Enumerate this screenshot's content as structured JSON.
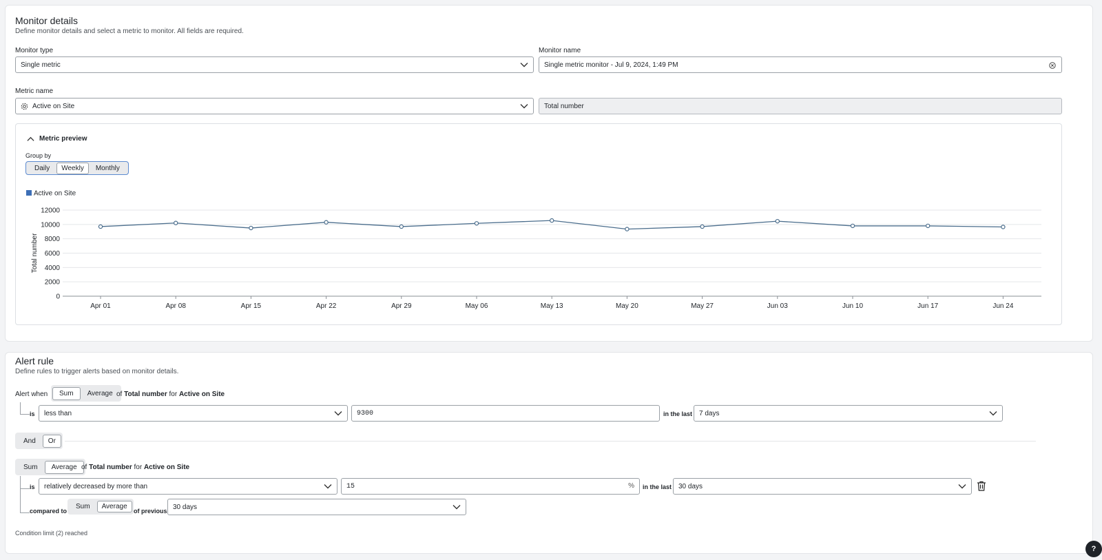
{
  "monitor_details": {
    "title": "Monitor details",
    "subtitle": "Define monitor details and select a metric to monitor. All fields are required.",
    "monitor_type_label": "Monitor type",
    "monitor_type_value": "Single metric",
    "monitor_name_label": "Monitor name",
    "monitor_name_value": "Single metric monitor - Jul 9, 2024, 1:49 PM",
    "metric_name_label": "Metric name",
    "metric_name_value": "Active on Site",
    "metric_unit_value": "Total number",
    "preview": {
      "title": "Metric preview",
      "group_by_label": "Group by",
      "group_by_options": [
        "Daily",
        "Weekly",
        "Monthly"
      ],
      "group_by_selected": "Weekly"
    }
  },
  "chart_data": {
    "type": "line",
    "title": "",
    "xlabel": "",
    "ylabel": "Total number",
    "legend": "top-left",
    "grid": true,
    "series_color": "#4a6d8c",
    "legend_color": "#3d6fb6",
    "ylim": [
      0,
      12000
    ],
    "yticks": [
      0,
      2000,
      4000,
      6000,
      8000,
      10000,
      12000
    ],
    "categories": [
      "Apr 01",
      "Apr 08",
      "Apr 15",
      "Apr 22",
      "Apr 29",
      "May 06",
      "May 13",
      "May 20",
      "May 27",
      "Jun 03",
      "Jun 10",
      "Jun 17",
      "Jun 24"
    ],
    "series": [
      {
        "name": "Active on Site",
        "values": [
          9700,
          10200,
          9500,
          10300,
          9700,
          10150,
          10550,
          9350,
          9700,
          10450,
          9800,
          9800,
          9650
        ]
      }
    ]
  },
  "alert_rule": {
    "title": "Alert rule",
    "subtitle": "Define rules to trigger alerts based on monitor details.",
    "alert_when_label": "Alert when",
    "agg_options": [
      "Sum",
      "Average"
    ],
    "cond1": {
      "agg_selected": "Sum",
      "of_label": "of",
      "metric_unit": "Total number",
      "for_label": "for",
      "metric": "Active on Site",
      "is_label": "is",
      "operator": "less than",
      "value": "9300",
      "in_the_last_label": "in the last",
      "window": "7 days"
    },
    "logic_options": [
      "And",
      "Or"
    ],
    "logic_selected": "Or",
    "cond2": {
      "agg_selected": "Average",
      "of_label": "of",
      "metric_unit": "Total number",
      "for_label": "for",
      "metric": "Active on Site",
      "is_label": "is",
      "operator": "relatively decreased by more than",
      "value": "15",
      "suffix": "%",
      "in_the_last_label": "in the last",
      "window": "30 days",
      "compared_to_label": "compared to",
      "compared_agg_selected": "Average",
      "of_previous_label": "of previous",
      "previous_window": "30 days"
    },
    "limit_note": "Condition limit (2) reached"
  },
  "help_label": "?",
  "icons": {
    "chevron": "chevron-down-icon",
    "clear": "clear-circle-icon",
    "gear": "gear-icon",
    "collapse": "chevron-up-icon",
    "delete": "trash-icon"
  }
}
